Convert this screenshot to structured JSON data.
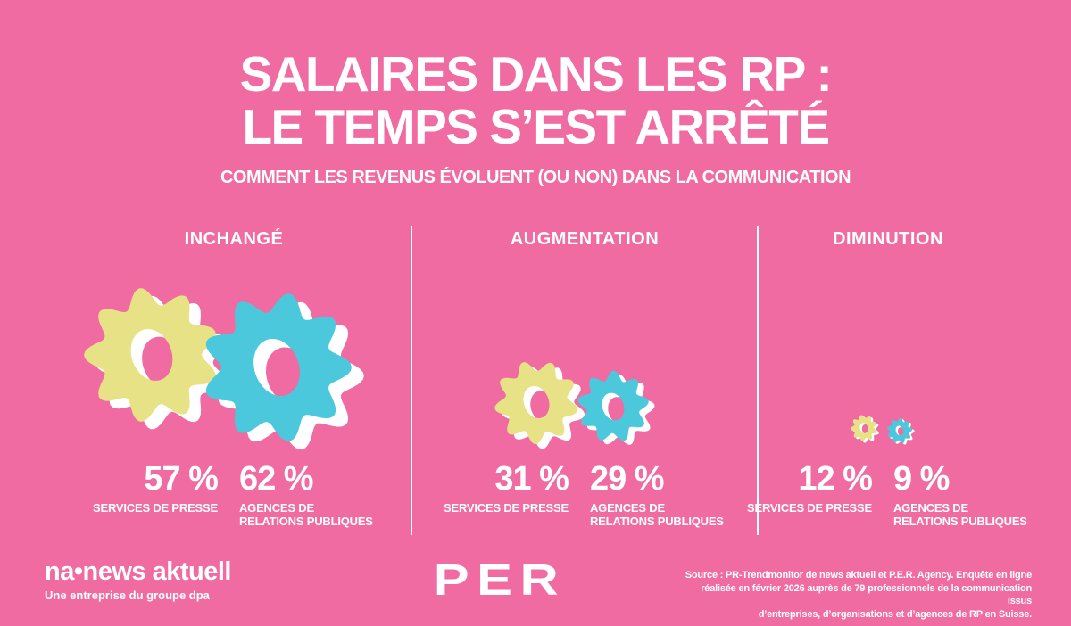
{
  "colors": {
    "background": "#ef6ba2",
    "gear_yellow": "#e8e287",
    "gear_cyan": "#4cc8dc",
    "text": "#ffffff"
  },
  "title": {
    "line1": "SALAIRES DANS LES RP :",
    "line2": "LE TEMPS S’EST ARRÊTÉ",
    "subtitle": "COMMENT LES REVENUS ÉVOLUENT (OU NON) DANS LA COMMUNICATION"
  },
  "columns": [
    {
      "header": "INCHANGÉ",
      "icon": "gears-icon",
      "stats": [
        {
          "value": "57 %",
          "label": "SERVICES DE PRESSE"
        },
        {
          "value": "62 %",
          "label": "AGENCES DE RELATIONS PUBLIQUES"
        }
      ]
    },
    {
      "header": "AUGMENTATION",
      "icon": "gears-icon",
      "stats": [
        {
          "value": "31 %",
          "label": "SERVICES DE PRESSE"
        },
        {
          "value": "29 %",
          "label": "AGENCES DE RELATIONS PUBLIQUES"
        }
      ]
    },
    {
      "header": "DIMINUTION",
      "icon": "gears-icon",
      "stats": [
        {
          "value": "12 %",
          "label": "SERVICES DE PRESSE"
        },
        {
          "value": "9 %",
          "label": "AGENCES DE RELATIONS PUBLIQUES"
        }
      ]
    }
  ],
  "footer": {
    "brand_left_name": "na•news aktuell",
    "brand_left_tagline": "Une entreprise du groupe dpa",
    "brand_center": "PER",
    "source_lines": [
      "Source : PR-Trendmonitor de news aktuell et P.E.R. Agency. Enquête en ligne",
      "réalisée en février 2026 auprès de 79 professionnels de la communication issus",
      "d’entreprises, d’organisations et d’agences de RP en Suisse."
    ]
  },
  "chart_data": {
    "type": "table",
    "title": "Salaires dans les RP : le temps s’est arrêté",
    "subtitle": "Comment les revenus évoluent (ou non) dans la communication",
    "categories": [
      "Inchangé",
      "Augmentation",
      "Diminution"
    ],
    "series": [
      {
        "name": "Services de presse",
        "values": [
          57,
          31,
          12
        ]
      },
      {
        "name": "Agences de relations publiques",
        "values": [
          62,
          29,
          9
        ]
      }
    ],
    "unit": "%"
  }
}
